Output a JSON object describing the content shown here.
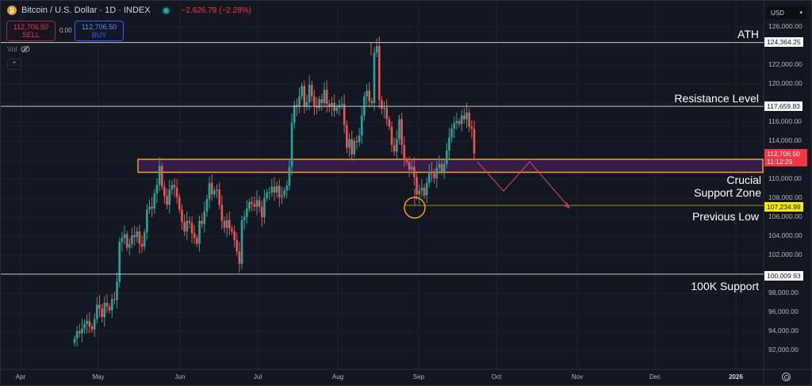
{
  "header": {
    "symbol_icon": "bitcoin-icon",
    "title": "Bitcoin / U.S. Dollar · 1D · INDEX",
    "change": "−2,626.79 (−2.28%)",
    "market_status": "open",
    "sell": {
      "price": "112,706.50",
      "label": "SELL"
    },
    "spread": "0.00",
    "buy": {
      "price": "112,706.50",
      "label": "BUY"
    },
    "volume_label": "Vol",
    "volume_icon": "eye-hidden-icon",
    "collapse_icon": "chevron-up-icon"
  },
  "currency": {
    "label": "USD",
    "icon": "chevron-down-icon"
  },
  "colors": {
    "background": "#131722",
    "up": "#26a69a",
    "down": "#ef5350",
    "support_zone_fill": "#3b1f4f",
    "support_zone_border": "#f0a020",
    "previous_low_line": "#a0881a",
    "projection": "#e0435a",
    "level_line": "#c8c8c8"
  },
  "chart_data": {
    "type": "candlestick",
    "title": "Bitcoin / U.S. Dollar · 1D · INDEX",
    "xlabel": "",
    "ylabel": "USD",
    "ylim": [
      91000,
      127000
    ],
    "grid": true,
    "y_ticks": [
      "126,000.00",
      "122,000.00",
      "120,000.00",
      "116,000.00",
      "114,000.00",
      "110,000.00",
      "108,000.00",
      "106,000.00",
      "104,000.00",
      "102,000.00",
      "98,000.00",
      "96,000.00",
      "94,000.00",
      "92,000.00"
    ],
    "x_ticks": [
      "Apr",
      "May",
      "Jun",
      "Jul",
      "Aug",
      "Sep",
      "Oct",
      "Nov",
      "Dec",
      "2026"
    ],
    "current_price": {
      "value": "112,706.50",
      "countdown": "11:12:29"
    },
    "levels": [
      {
        "name": "ATH",
        "value": "124,364.25",
        "price": 124364.25
      },
      {
        "name": "Resistance Level",
        "value": "117,659.83",
        "price": 117659.83
      },
      {
        "name": "Previous Low",
        "value": "107,234.99",
        "price": 107234.99
      },
      {
        "name": "100K Support",
        "value": "100,009.93",
        "price": 100009.93
      }
    ],
    "zones": [
      {
        "name": "Crucial Support Zone",
        "from": 110800,
        "to": 112000
      }
    ],
    "annotations": [
      "ATH",
      "Resistance Level",
      "Crucial Support Zone",
      "Previous Low",
      "100K Support"
    ],
    "projection_path": [
      {
        "date": "2025-09-22",
        "price": 112000
      },
      {
        "date": "2025-10-05",
        "price": 108800
      },
      {
        "date": "2025-10-17",
        "price": 112000
      },
      {
        "date": "2025-10-30",
        "price": 107235
      }
    ],
    "candles_closes_approx": [
      93200,
      94000,
      93800,
      94300,
      94800,
      95100,
      94500,
      94200,
      95300,
      96800,
      96400,
      95500,
      97000,
      96600,
      96200,
      97400,
      97300,
      99200,
      103400,
      103800,
      104200,
      102800,
      103200,
      104100,
      103900,
      104500,
      103200,
      102900,
      104400,
      106800,
      107100,
      106900,
      108500,
      109400,
      111400,
      109200,
      108200,
      107300,
      108900,
      109400,
      109100,
      108100,
      106800,
      105500,
      104500,
      105600,
      105400,
      104300,
      103800,
      103200,
      105600,
      105300,
      106600,
      107900,
      109600,
      108400,
      108800,
      108900,
      107300,
      105600,
      104900,
      105700,
      104800,
      104500,
      103600,
      102400,
      101100,
      105700,
      106000,
      106900,
      107600,
      107400,
      107100,
      107800,
      107100,
      106000,
      108000,
      108600,
      108600,
      109200,
      108600,
      109300,
      108100,
      108300,
      108800,
      109300,
      111300,
      115900,
      117800,
      117600,
      118700,
      119800,
      117700,
      118100,
      119900,
      118700,
      117700,
      117500,
      118400,
      118000,
      119400,
      117900,
      117600,
      118000,
      117200,
      117500,
      117800,
      117900,
      115700,
      113300,
      114200,
      112600,
      114000,
      113900,
      114600,
      116700,
      118700,
      119300,
      118200,
      118000,
      123300,
      124000,
      118300,
      117400,
      117500,
      116300,
      115500,
      113600,
      112900,
      114200,
      116300,
      113600,
      112000,
      111800,
      111000,
      111300,
      110200,
      108400,
      108800,
      109100,
      108300,
      109600,
      110800,
      110600,
      110100,
      111200,
      111600,
      110800,
      111600,
      113000,
      114400,
      115300,
      115900,
      116100,
      115800,
      116700,
      116300,
      117000,
      115500,
      115300,
      112700
    ]
  },
  "annotations": {
    "ath": "ATH",
    "resistance": "Resistance Level",
    "support_zone_line1": "Crucial",
    "support_zone_line2": "Support Zone",
    "previous_low": "Previous Low",
    "k100": "100K Support"
  },
  "footer": {
    "settings_icon": "gear-icon"
  }
}
